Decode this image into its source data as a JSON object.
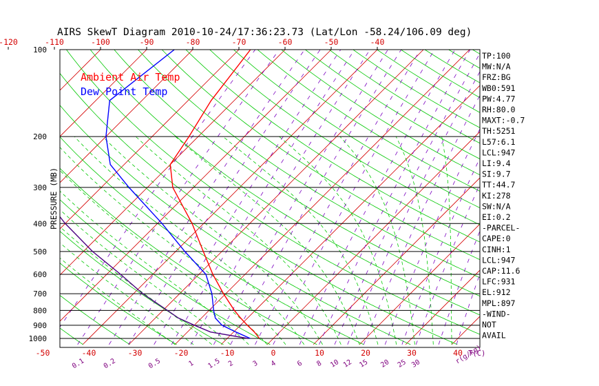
{
  "chart_data": {
    "type": "line",
    "title": "AIRS SkewT Diagram 2010-10-24/17:36:23.73 (Lat/Lon -58.24/106.09 deg)",
    "ylabel": "PRESSURE (MB)",
    "xlabel_unit": "T(C)",
    "mixing_unit": "r(g/kg)",
    "top_temp_ticks": [
      -120,
      -110,
      -100,
      -90,
      -80,
      -70,
      -60,
      -50,
      -40
    ],
    "bottom_temp_ticks": [
      -50,
      -40,
      -30,
      -20,
      -10,
      0,
      10,
      20,
      30,
      40
    ],
    "pressure_ticks": [
      100,
      200,
      300,
      400,
      500,
      600,
      700,
      800,
      900,
      1000
    ],
    "mixing_ratio_labels": [
      "0.1",
      "0.2",
      "0.5",
      "1",
      "1.5",
      "2",
      "3",
      "4",
      "6",
      "8",
      "10",
      "12",
      "15",
      "20",
      "25",
      "30"
    ],
    "legend": [
      {
        "name": "Ambient Air Temp",
        "color": "#ff0000"
      },
      {
        "name": "Dew Point Temp",
        "color": "#0000ff"
      }
    ],
    "series": [
      {
        "name": "Ambient Air Temp",
        "color": "#ff0000",
        "points": [
          [
            1000,
            -3
          ],
          [
            950,
            -5.5
          ],
          [
            900,
            -8.5
          ],
          [
            850,
            -11.5
          ],
          [
            800,
            -14.5
          ],
          [
            700,
            -20.5
          ],
          [
            600,
            -27
          ],
          [
            500,
            -34
          ],
          [
            400,
            -42.5
          ],
          [
            300,
            -54.5
          ],
          [
            250,
            -60
          ],
          [
            200,
            -62
          ],
          [
            150,
            -65
          ],
          [
            100,
            -67.5
          ]
        ]
      },
      {
        "name": "Dew Point Temp",
        "color": "#0000ff",
        "points": [
          [
            1000,
            -5
          ],
          [
            950,
            -9.5
          ],
          [
            900,
            -14
          ],
          [
            850,
            -17
          ],
          [
            800,
            -19
          ],
          [
            700,
            -23
          ],
          [
            600,
            -28.5
          ],
          [
            500,
            -38
          ],
          [
            400,
            -49
          ],
          [
            300,
            -64
          ],
          [
            250,
            -73
          ],
          [
            200,
            -80
          ],
          [
            150,
            -87
          ],
          [
            100,
            -84
          ]
        ]
      },
      {
        "name": "",
        "color": "#4b0082",
        "points": [
          [
            1000,
            -5.5
          ],
          [
            950,
            -15
          ],
          [
            900,
            -20
          ],
          [
            850,
            -25
          ],
          [
            800,
            -29
          ],
          [
            700,
            -38
          ],
          [
            600,
            -47
          ],
          [
            500,
            -58
          ],
          [
            400,
            -70
          ],
          [
            300,
            -84
          ],
          [
            200,
            -98
          ],
          [
            150,
            -110
          ],
          [
            125,
            -115
          ]
        ]
      }
    ],
    "grid": true
  },
  "indices": [
    "TP:100",
    "MW:N/A",
    "FRZ:BG",
    "WB0:591",
    "PW:4.77",
    "RH:80.0",
    "MAXT:-0.7",
    "TH:5251",
    "L57:6.1",
    "LCL:947",
    "LI:9.4",
    "SI:9.7",
    "TT:44.7",
    "KI:278",
    "SW:N/A",
    "EI:0.2",
    "-PARCEL-",
    "CAPE:0",
    "CINH:1",
    "LCL:947",
    "CAP:11.6",
    "LFC:931",
    "EL:912",
    "MPL:897",
    "-WIND-",
    "NOT",
    "AVAIL"
  ]
}
